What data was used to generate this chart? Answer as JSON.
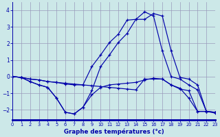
{
  "xlabel": "Graphe des températures (°c)",
  "bg_color": "#cce8e8",
  "grid_color": "#9999bb",
  "line_color": "#0000aa",
  "xlim": [
    0,
    23
  ],
  "ylim": [
    -2.6,
    4.5
  ],
  "yticks": [
    -2,
    -1,
    0,
    1,
    2,
    3,
    4
  ],
  "xticks": [
    0,
    1,
    2,
    3,
    4,
    5,
    6,
    7,
    8,
    9,
    10,
    11,
    12,
    13,
    14,
    15,
    16,
    17,
    18,
    19,
    20,
    21,
    22,
    23
  ],
  "lines": [
    {
      "x": [
        0,
        1,
        2,
        3,
        4,
        5,
        6,
        7,
        8,
        9,
        10,
        11,
        12,
        13,
        14,
        15,
        16,
        17,
        18,
        19,
        20,
        21,
        22,
        23
      ],
      "y": [
        0.0,
        -0.05,
        -0.15,
        -0.2,
        -0.3,
        -0.35,
        -0.4,
        -0.45,
        -0.5,
        -0.55,
        -0.6,
        -0.65,
        -0.7,
        -0.75,
        -0.8,
        -0.15,
        -0.15,
        -0.15,
        -0.5,
        -0.75,
        -0.85,
        -2.1,
        -2.1,
        -2.15
      ]
    },
    {
      "x": [
        0,
        1,
        2,
        3,
        4,
        5,
        6,
        7,
        8,
        9,
        10,
        11,
        12,
        13,
        14,
        15,
        16,
        17,
        18,
        19,
        20,
        21,
        22,
        23
      ],
      "y": [
        0.0,
        -0.05,
        -0.3,
        -0.5,
        -0.65,
        -1.3,
        -2.15,
        -2.25,
        -1.85,
        -1.1,
        -0.65,
        -0.5,
        -0.45,
        -0.4,
        -0.35,
        -0.2,
        -0.1,
        -0.15,
        -0.5,
        -0.7,
        -1.3,
        -2.1,
        -2.1,
        -2.2
      ]
    },
    {
      "x": [
        0,
        1,
        2,
        3,
        4,
        5,
        6,
        7,
        8,
        9,
        10,
        11,
        12,
        13,
        14,
        15,
        16,
        17,
        18,
        19,
        20,
        21,
        22,
        23
      ],
      "y": [
        0.0,
        -0.05,
        -0.3,
        -0.5,
        -0.65,
        -1.3,
        -2.15,
        -2.25,
        -1.85,
        -0.85,
        0.6,
        1.3,
        2.05,
        2.6,
        3.45,
        3.45,
        3.8,
        3.65,
        1.55,
        -0.05,
        -0.15,
        -0.5,
        -2.1,
        -2.15
      ]
    },
    {
      "x": [
        0,
        1,
        2,
        3,
        4,
        5,
        6,
        7,
        8,
        9,
        10,
        11,
        12,
        13,
        14,
        15,
        16,
        17,
        18,
        19,
        20,
        21,
        22,
        23
      ],
      "y": [
        0.0,
        -0.05,
        -0.15,
        -0.2,
        -0.3,
        -0.35,
        -0.45,
        -0.5,
        -0.5,
        0.6,
        1.3,
        2.05,
        2.55,
        3.4,
        3.45,
        3.9,
        3.65,
        1.55,
        0.0,
        -0.15,
        -0.5,
        -0.8,
        -2.1,
        -2.15
      ]
    }
  ]
}
